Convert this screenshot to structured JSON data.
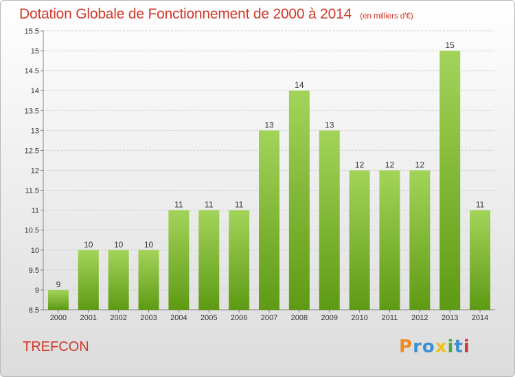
{
  "title": "Dotation Globale de Fonctionnement de 2000 à 2014",
  "unit": "(en milliers d'€)",
  "city": "TREFCON",
  "logo": {
    "text": "Proxiti",
    "letters": [
      "P",
      "r",
      "o",
      "x",
      "i",
      "t",
      "i"
    ],
    "colors": [
      "#f08a24",
      "#3a8fd0",
      "#3a8fd0",
      "#f0c020",
      "#4aa83c",
      "#3a8fd0",
      "#d0392a"
    ]
  },
  "colors": {
    "bar_top": "#a3d45a",
    "bar_bottom": "#5e9a14",
    "title": "#d0392a",
    "grid": "#c8c8c8"
  },
  "chart_data": {
    "type": "bar",
    "categories": [
      "2000",
      "2001",
      "2002",
      "2003",
      "2004",
      "2005",
      "2006",
      "2007",
      "2008",
      "2009",
      "2010",
      "2011",
      "2012",
      "2013",
      "2014"
    ],
    "values": [
      9,
      10,
      10,
      10,
      11,
      11,
      11,
      13,
      14,
      13,
      12,
      12,
      12,
      15,
      11
    ],
    "data_labels": [
      "9",
      "10",
      "10",
      "10",
      "11",
      "11",
      "11",
      "13",
      "14",
      "13",
      "12",
      "12",
      "12",
      "15",
      "11"
    ],
    "ylim": [
      8.5,
      15.5
    ],
    "yticks": [
      "8.5",
      "9",
      "9.5",
      "10",
      "10.5",
      "11",
      "11.5",
      "12",
      "12.5",
      "13",
      "13.5",
      "14",
      "14.5",
      "15",
      "15.5"
    ],
    "grid": true
  }
}
